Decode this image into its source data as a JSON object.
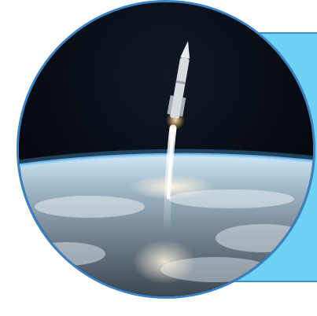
{
  "figure": {
    "image": "rocket-launch-over-earth",
    "colors": {
      "panel_fill": "#6fd2f5",
      "panel_border": "#3a8fc7",
      "circle_border": "#3a82c4",
      "space": "#05080d",
      "atmosphere": "#8fd0ff"
    }
  }
}
